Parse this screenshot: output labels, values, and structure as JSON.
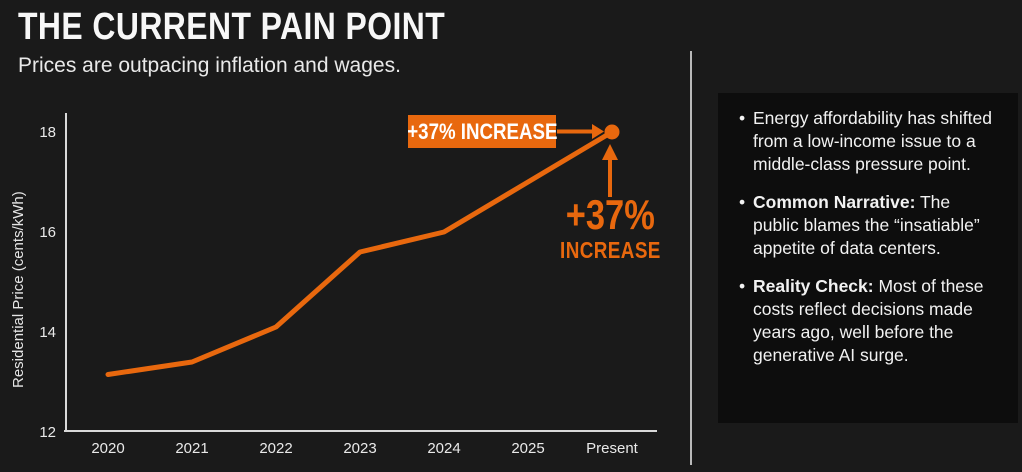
{
  "header": {
    "title": "THE CURRENT PAIN POINT",
    "subtitle": "Prices are outpacing inflation and wages."
  },
  "chart_data": {
    "type": "line",
    "categories": [
      "2020",
      "2021",
      "2022",
      "2023",
      "2024",
      "2025",
      "Present"
    ],
    "series": [
      {
        "name": "Residential Price",
        "values": [
          13.15,
          13.4,
          14.1,
          15.6,
          16.0,
          17.0,
          18.0
        ]
      }
    ],
    "xlabel": "",
    "ylabel": "Residential Price (cents/kWh)",
    "ylim": [
      12,
      18
    ],
    "yticks": [
      12,
      14,
      16,
      18
    ],
    "grid": false,
    "legend": "none",
    "line_color": "#e8680e",
    "annotations": {
      "badge_label": "+37% INCREASE",
      "callout_line1": "+37%",
      "callout_line2": "INCREASE",
      "points_to": "Present"
    }
  },
  "panel": {
    "bullets": [
      {
        "bold": "",
        "text": "Energy affordability has shifted from a low-income issue to a middle-class pressure point."
      },
      {
        "bold": "Common Narrative:",
        "text": " The public blames the “insatiable” appetite of data centers."
      },
      {
        "bold": "Reality Check:",
        "text": " Most of these costs reflect decisions made years ago, well before the generative AI surge."
      }
    ]
  },
  "colors": {
    "accent": "#e8680e",
    "background": "#1a1a1a",
    "panel_background": "#0d0d0d"
  }
}
